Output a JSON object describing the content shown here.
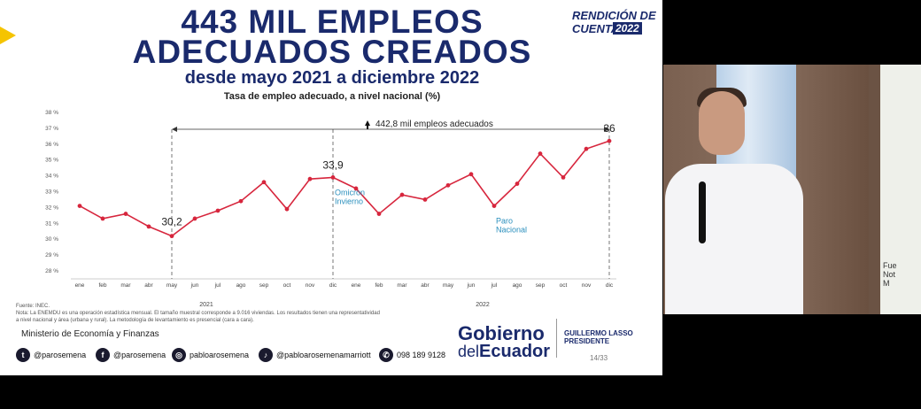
{
  "slide": {
    "title_line1": "443 MIL EMPLEOS",
    "title_line2": "ADECUADOS CREADOS",
    "subtitle": "desde mayo 2021 a diciembre 2022",
    "chart_caption": "Tasa de empleo adecuado, a nivel nacional (%)",
    "badge": {
      "line1": "RENDICIÓN DE",
      "line2": "CUENTAS",
      "year": "2022"
    },
    "source": "Fuente: INEC.",
    "note_line1": "Nota: La ENEMDU es una operación estadística mensual. El tamaño muestral corresponde a 9.016 viviendas. Los resultados tienen una representatividad",
    "note_line2": "a nivel nacional y área (urbana y rural). La metodología de levantamiento es presencial (cara a cara).",
    "ministry": "Ministerio de Economía y Finanzas",
    "social": [
      {
        "icon": "twitter-icon",
        "glyph": "t",
        "handle": "@parosemena"
      },
      {
        "icon": "facebook-icon",
        "glyph": "f",
        "handle": "@parosemena"
      },
      {
        "icon": "instagram-icon",
        "glyph": "◎",
        "handle": "pabloarosemena"
      },
      {
        "icon": "tiktok-icon",
        "glyph": "♪",
        "handle": "@pabloarosemenamarriott"
      },
      {
        "icon": "whatsapp-icon",
        "glyph": "✆",
        "handle": "098 189 9128"
      }
    ],
    "gov_logo_line1": "Gobierno",
    "gov_logo_line2_small": "del",
    "gov_logo_line2_big": "Ecuador",
    "president_name": "GUILLERMO LASSO",
    "president_title": "PRESIDENTE",
    "page": "14/33"
  },
  "video": {
    "screen_text": "Fue\nNot\nM"
  },
  "chart_data": {
    "type": "line",
    "title": "Tasa de empleo adecuado, a nivel nacional (%)",
    "categories": [
      "ene",
      "feb",
      "mar",
      "abr",
      "may",
      "jun",
      "jul",
      "ago",
      "sep",
      "oct",
      "nov",
      "dic",
      "ene",
      "feb",
      "mar",
      "abr",
      "may",
      "jun",
      "jul",
      "ago",
      "sep",
      "oct",
      "nov",
      "dic"
    ],
    "year_labels": [
      {
        "label": "2021",
        "index": 5.5
      },
      {
        "label": "2022",
        "index": 17.5
      }
    ],
    "values": [
      32.1,
      31.3,
      31.6,
      30.8,
      30.2,
      31.3,
      31.8,
      32.4,
      33.6,
      31.9,
      33.8,
      33.9,
      33.2,
      31.6,
      32.8,
      32.5,
      33.4,
      34.1,
      32.1,
      33.5,
      35.4,
      33.9,
      35.7,
      36.2
    ],
    "ylim": [
      28,
      38
    ],
    "yticks": [
      "28 %",
      "29 %",
      "30 %",
      "31 %",
      "32 %",
      "33 %",
      "34 %",
      "35 %",
      "36 %",
      "37 %",
      "38 %"
    ],
    "point_labels": [
      {
        "index": 4,
        "text": "30,2"
      },
      {
        "index": 11,
        "text": "33,9"
      },
      {
        "index": 23,
        "text": "36"
      }
    ],
    "range_annotation": {
      "from": 4,
      "to": 23,
      "text": "442,8 mil empleos adecuados"
    },
    "annotations": [
      {
        "index": 11,
        "text": "Omicron\nInvierno"
      },
      {
        "index": 18,
        "text": "Paro\nNacional"
      }
    ],
    "line_color": "#d7263d",
    "annotation_color": "#2a8fbd",
    "grid": false
  }
}
